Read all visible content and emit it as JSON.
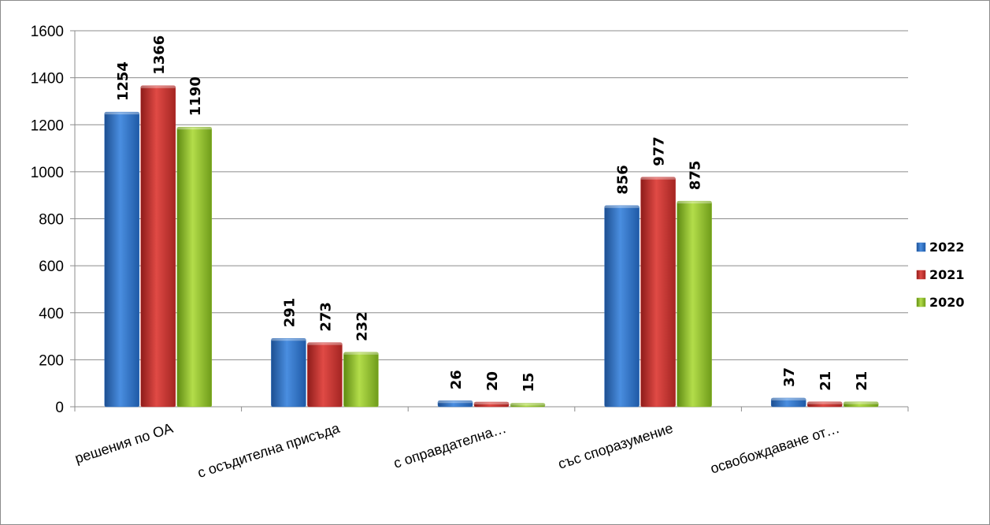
{
  "chart_data": {
    "type": "bar",
    "categories": [
      "решения по ОА",
      "с осъдителна присъда",
      "с оправдателна…",
      "със споразумение",
      "освобождаване от…"
    ],
    "series": [
      {
        "name": "2022",
        "values": [
          1254,
          291,
          26,
          856,
          37
        ],
        "color": "#2e6fc0"
      },
      {
        "name": "2021",
        "values": [
          1366,
          273,
          20,
          977,
          21
        ],
        "color": "#c0302e"
      },
      {
        "name": "2020",
        "values": [
          1190,
          232,
          15,
          875,
          21
        ],
        "color": "#8cbb2a"
      }
    ],
    "yticks": [
      "0",
      "200",
      "400",
      "600",
      "800",
      "1000",
      "1200",
      "1400",
      "1600"
    ],
    "ylim": [
      0,
      1600
    ],
    "grid": true,
    "legend_position": "right",
    "title": "",
    "xlabel": "",
    "ylabel": ""
  }
}
